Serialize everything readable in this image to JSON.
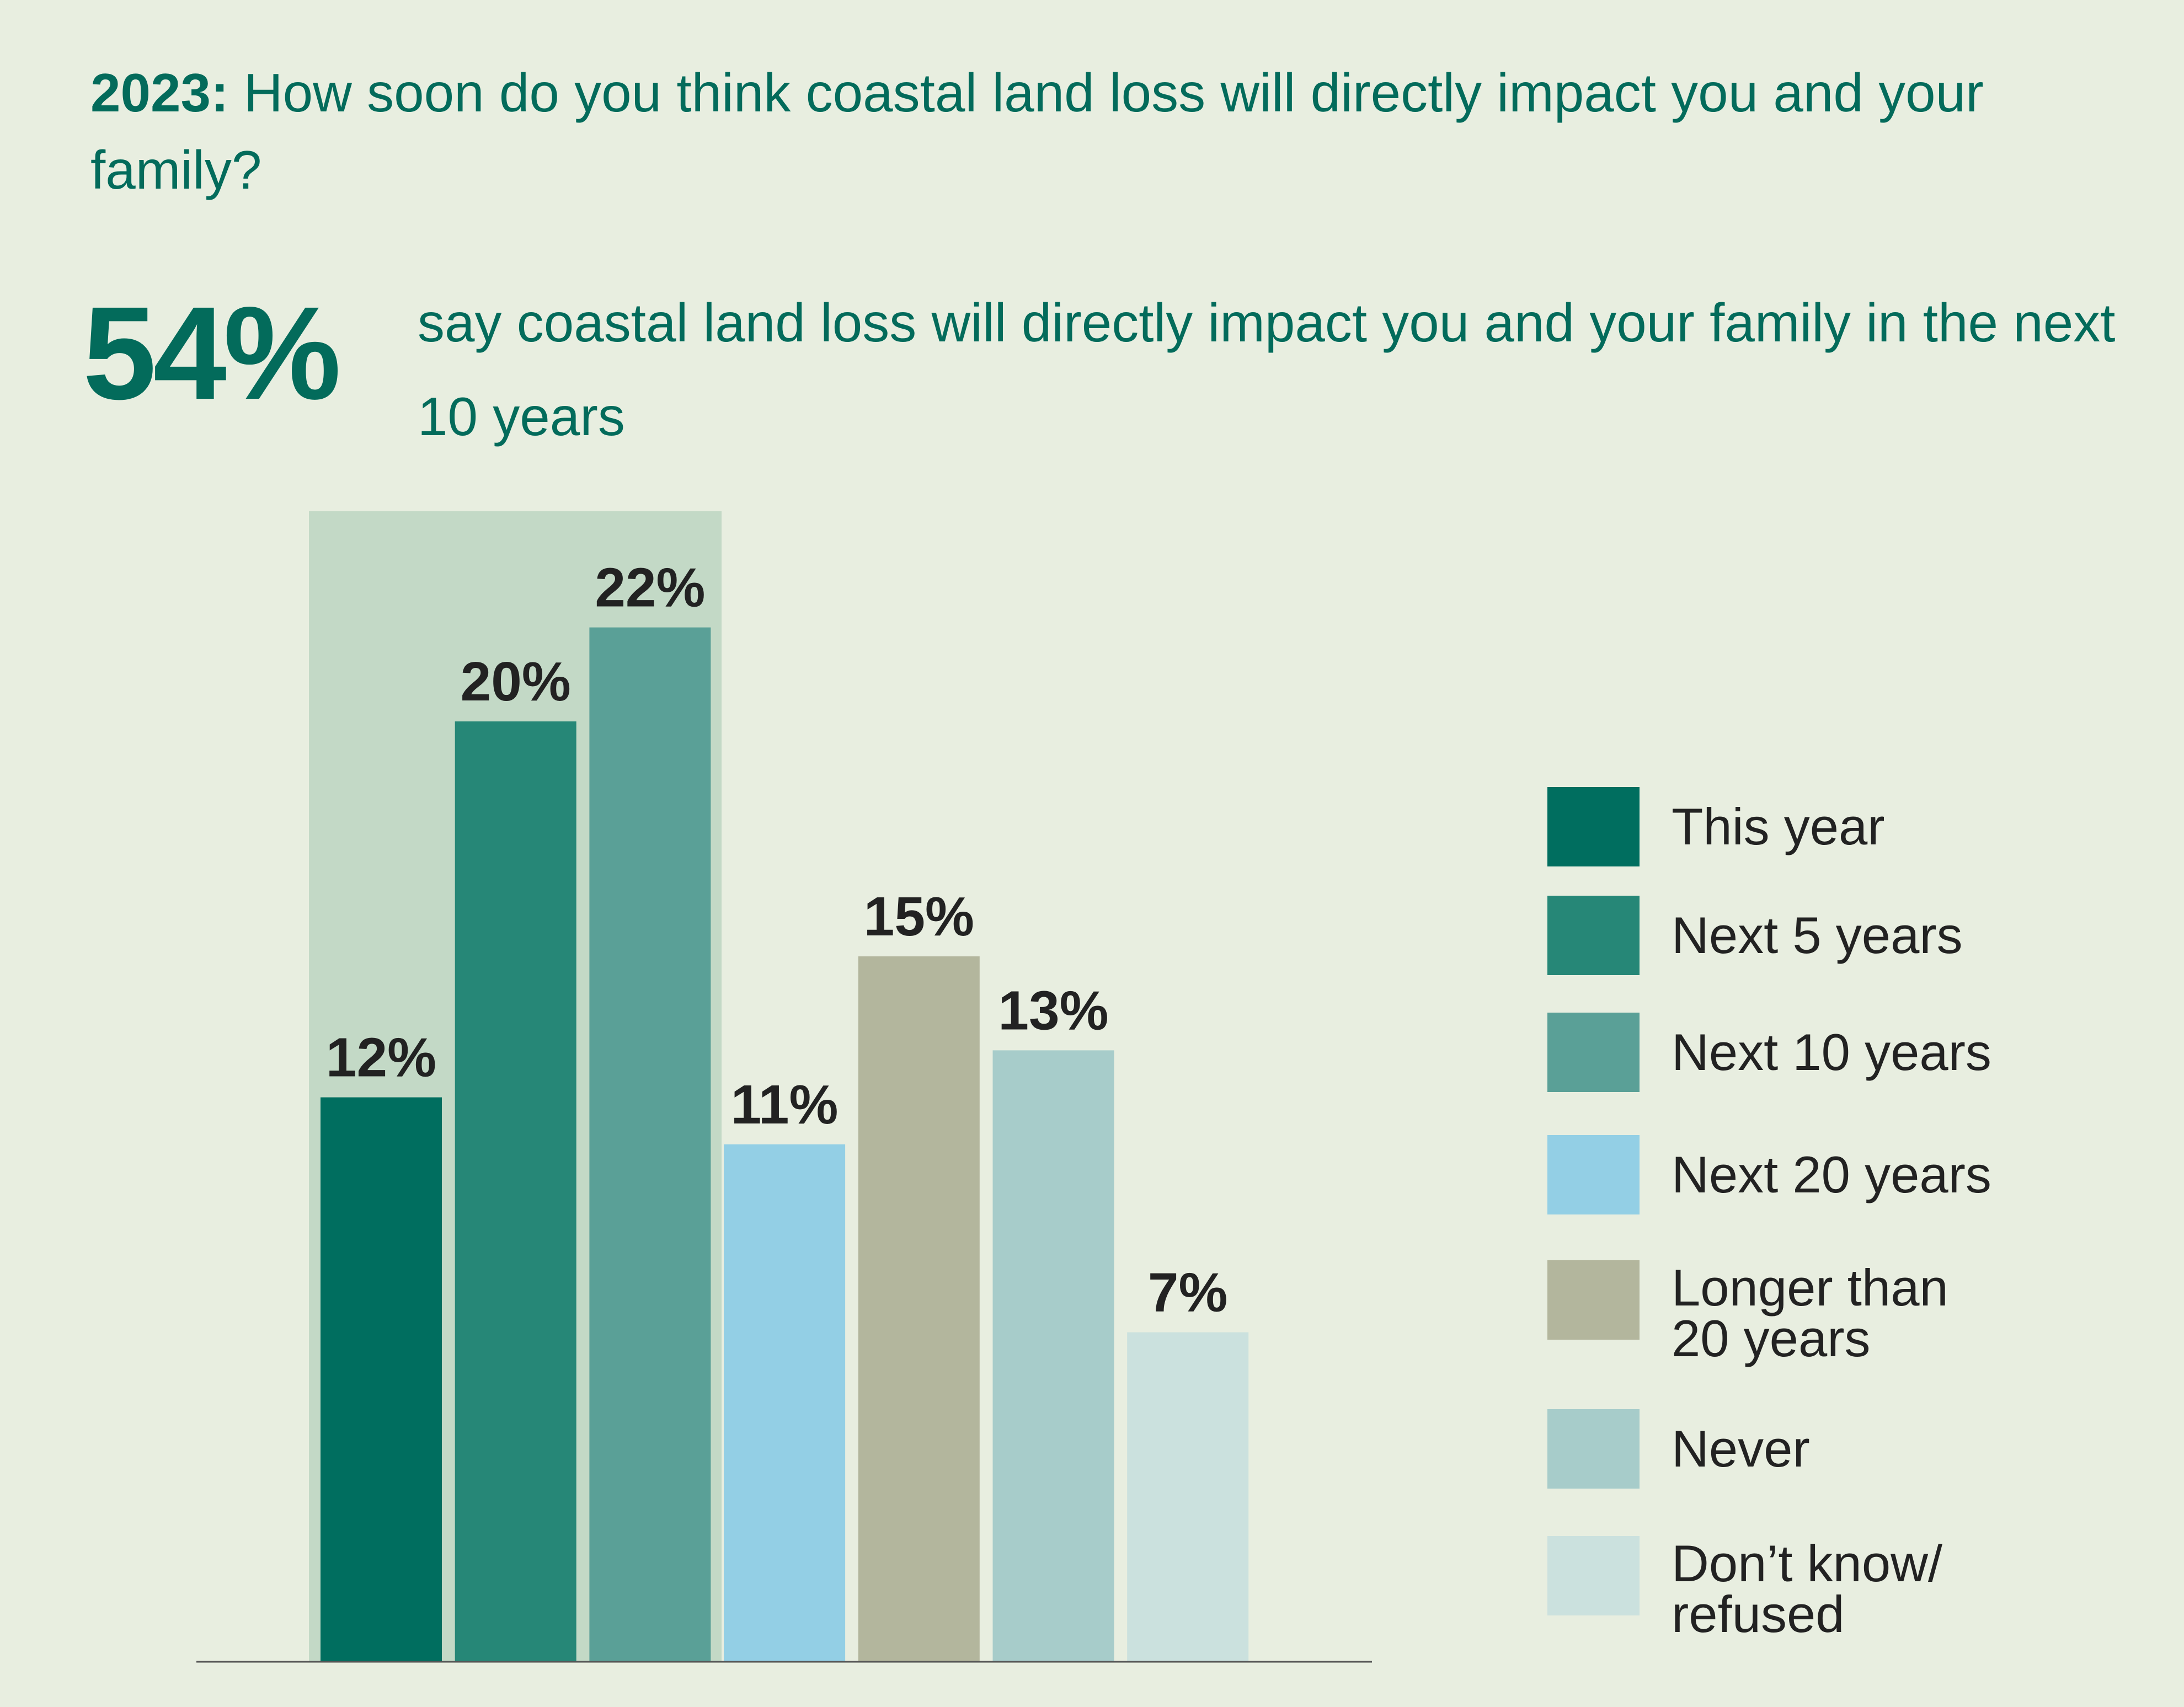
{
  "header": {
    "year": "2023:",
    "question": "How soon do you think coastal land loss will directly impact you and your family?"
  },
  "highlight": {
    "value": "54%",
    "text": "say coastal land loss will directly impact you and your family in the next 10 years"
  },
  "chart_data": {
    "type": "bar",
    "categories": [
      "This year",
      "Next 5 years",
      "Next 10 years",
      "Next 20 years",
      "Longer than 20 years",
      "Never",
      "Don’t know/ refused"
    ],
    "values": [
      12,
      20,
      22,
      11,
      15,
      13,
      7
    ],
    "labels": [
      "12%",
      "20%",
      "22%",
      "11%",
      "15%",
      "13%",
      "7%"
    ],
    "colors": [
      "#006e5f",
      "#268777",
      "#5aa097",
      "#93cfe5",
      "#b3b69d",
      "#a7ccca",
      "#cbe1de"
    ],
    "highlight_band_categories": [
      "This year",
      "Next 5 years",
      "Next 10 years"
    ],
    "highlight_color": "#c3d9c6",
    "legend_position": "right",
    "ylim": [
      0,
      25
    ]
  }
}
